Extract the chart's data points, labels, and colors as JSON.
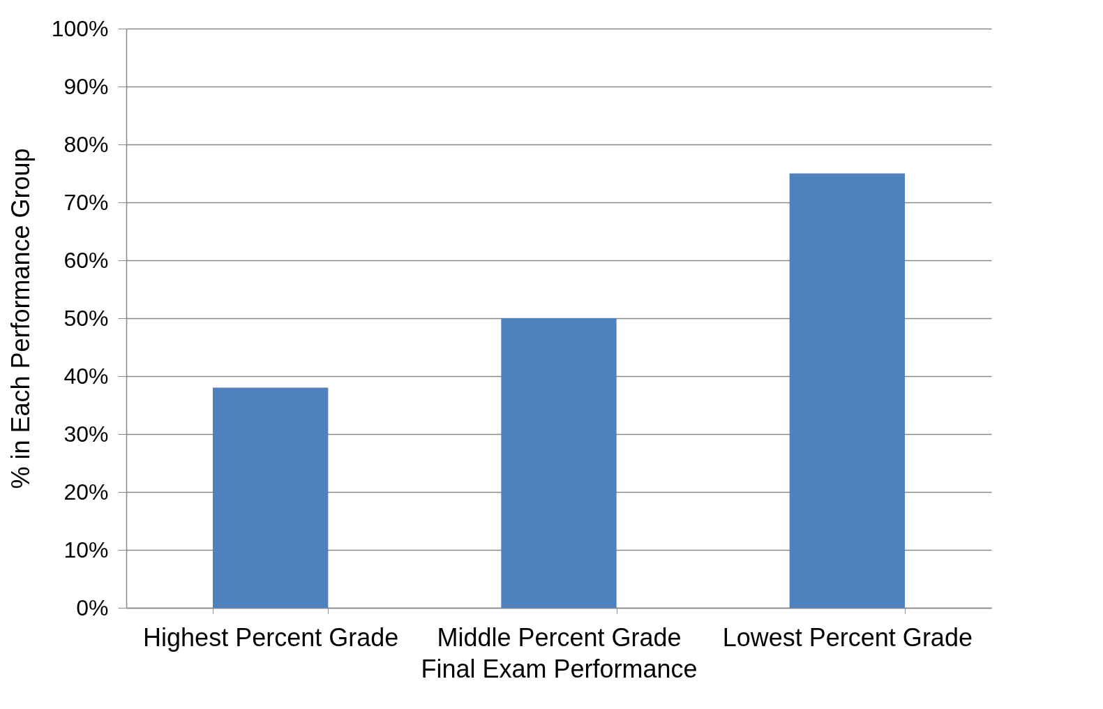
{
  "chart_data": {
    "type": "bar",
    "xlabel": "Final Exam Performance",
    "ylabel": "% in Each Performance Group",
    "categories": [
      "Highest Percent Grade",
      "Middle Percent Grade",
      "Lowest Percent Grade"
    ],
    "values": [
      38,
      50,
      75
    ],
    "color": "#4f81bd",
    "ylim": [
      0,
      100
    ],
    "yticks": [
      {
        "value": 0,
        "label": "0%"
      },
      {
        "value": 10,
        "label": "10%"
      },
      {
        "value": 20,
        "label": "20%"
      },
      {
        "value": 30,
        "label": "30%"
      },
      {
        "value": 40,
        "label": "40%"
      },
      {
        "value": 50,
        "label": "50%"
      },
      {
        "value": 60,
        "label": "60%"
      },
      {
        "value": 70,
        "label": "70%"
      },
      {
        "value": 80,
        "label": "80%"
      },
      {
        "value": 90,
        "label": "90%"
      },
      {
        "value": 100,
        "label": "100%"
      }
    ],
    "grid": "y"
  }
}
